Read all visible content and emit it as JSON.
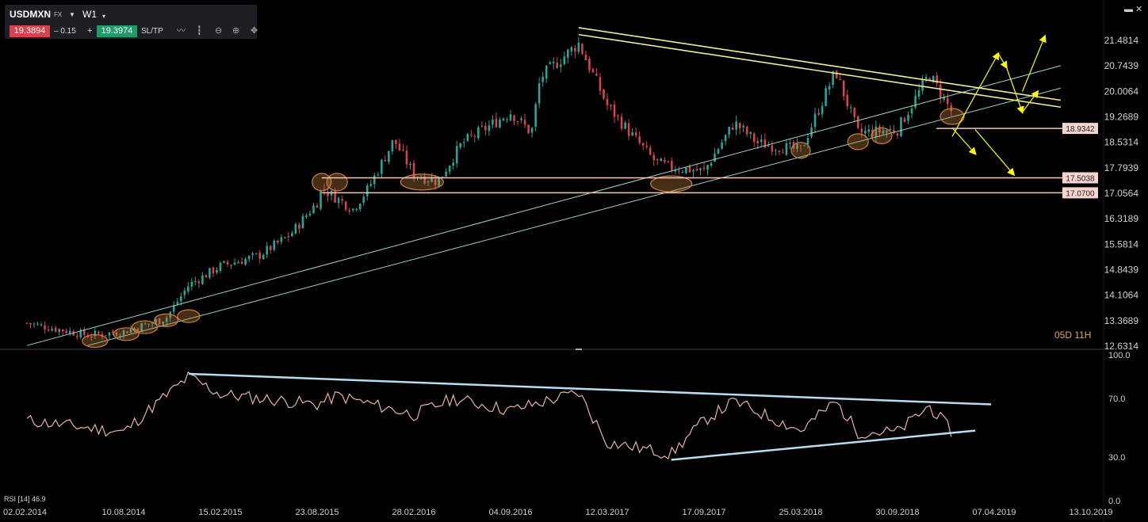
{
  "toolbar": {
    "symbol": "USDMXN",
    "market": "FX",
    "timeframe": "W1",
    "bid": "19.3894",
    "change": "– 0.15",
    "plus": "+",
    "ask": "19.3974",
    "sltp_label": "SL/TP",
    "icons": [
      "line-chart-icon",
      "candle-icon",
      "zoom-out-icon",
      "zoom-in-icon",
      "move-icon"
    ]
  },
  "window_icons": "▬ ✕",
  "countdown": "05D 11H",
  "rsi_label": "RSI [14] 46.9",
  "colors": {
    "bull": "#26a69a",
    "bear": "#d8424f",
    "trend_lines": "#9fd3c7",
    "resistance": "#f0ec9a",
    "level_line": "#f4c6bc",
    "ellipse": "#c9803c",
    "arrow": "#ffff00",
    "rsi_line": "#e9b2a8",
    "rsi_trend": "#b8dcf0"
  },
  "chart_data": [
    {
      "type": "candlestick",
      "symbol": "USDMXN",
      "timeframe": "W1",
      "yaxis_ticks": [
        21.4814,
        20.7439,
        20.0064,
        19.2689,
        18.5314,
        17.7939,
        17.0564,
        16.3189,
        15.5814,
        14.8439,
        14.1064,
        13.3689,
        12.6314
      ],
      "ylim": [
        12.6314,
        22.3
      ],
      "xaxis_ticks": [
        "02.02.2014",
        "10.08.2014",
        "15.02.2015",
        "23.08.2015",
        "28.02.2016",
        "04.09.2016",
        "12.03.2017",
        "17.09.2017",
        "25.03.2018",
        "30.09.2018",
        "07.04.2019",
        "13.10.2019"
      ],
      "price_levels": [
        18.9342,
        17.5038,
        17.07
      ],
      "price_level_labels": [
        "18.9342",
        "17.5038",
        "17.0700"
      ],
      "close_path": [
        {
          "x": "02.02.2014",
          "y": 13.3
        },
        {
          "x": "01.06.2014",
          "y": 12.95
        },
        {
          "x": "10.08.2014",
          "y": 13.05
        },
        {
          "x": "01.11.2014",
          "y": 13.45
        },
        {
          "x": "15.12.2014",
          "y": 14.4
        },
        {
          "x": "15.02.2015",
          "y": 14.95
        },
        {
          "x": "01.05.2015",
          "y": 15.25
        },
        {
          "x": "01.07.2015",
          "y": 15.85
        },
        {
          "x": "23.08.2015",
          "y": 16.8
        },
        {
          "x": "01.09.2015",
          "y": 17.2
        },
        {
          "x": "01.11.2015",
          "y": 16.6
        },
        {
          "x": "01.12.2015",
          "y": 17.2
        },
        {
          "x": "20.01.2016",
          "y": 18.6
        },
        {
          "x": "28.02.2016",
          "y": 17.6
        },
        {
          "x": "15.04.2016",
          "y": 17.4
        },
        {
          "x": "01.06.2016",
          "y": 18.5
        },
        {
          "x": "04.09.2016",
          "y": 19.4
        },
        {
          "x": "15.10.2016",
          "y": 18.8
        },
        {
          "x": "01.11.2016",
          "y": 20.4
        },
        {
          "x": "15.01.2017",
          "y": 21.4
        },
        {
          "x": "12.03.2017",
          "y": 19.6
        },
        {
          "x": "01.05.2017",
          "y": 18.7
        },
        {
          "x": "15.06.2017",
          "y": 17.95
        },
        {
          "x": "15.07.2017",
          "y": 17.8
        },
        {
          "x": "17.09.2017",
          "y": 17.7
        },
        {
          "x": "15.11.2017",
          "y": 19.1
        },
        {
          "x": "01.01.2018",
          "y": 18.5
        },
        {
          "x": "25.03.2018",
          "y": 18.3
        },
        {
          "x": "01.06.2018",
          "y": 20.6
        },
        {
          "x": "15.07.2018",
          "y": 18.8
        },
        {
          "x": "30.09.2018",
          "y": 18.9
        },
        {
          "x": "01.12.2018",
          "y": 20.5
        },
        {
          "x": "15.01.2019",
          "y": 19.39
        }
      ]
    },
    {
      "type": "line",
      "label": "RSI [14] 46.9",
      "yaxis_ticks": [
        100.0,
        70.0,
        30.0,
        0.0
      ],
      "ylim": [
        0,
        100
      ],
      "values": [
        {
          "x": "02.02.2014",
          "y": 55
        },
        {
          "x": "10.08.2014",
          "y": 47
        },
        {
          "x": "01.10.2014",
          "y": 63
        },
        {
          "x": "15.12.2014",
          "y": 85
        },
        {
          "x": "15.02.2015",
          "y": 73
        },
        {
          "x": "23.08.2015",
          "y": 66
        },
        {
          "x": "01.10.2015",
          "y": 72
        },
        {
          "x": "28.02.2016",
          "y": 59
        },
        {
          "x": "15.05.2016",
          "y": 70
        },
        {
          "x": "04.09.2016",
          "y": 62
        },
        {
          "x": "15.01.2017",
          "y": 74
        },
        {
          "x": "12.03.2017",
          "y": 40
        },
        {
          "x": "15.07.2017",
          "y": 32
        },
        {
          "x": "17.09.2017",
          "y": 55
        },
        {
          "x": "15.11.2017",
          "y": 68
        },
        {
          "x": "25.03.2018",
          "y": 48
        },
        {
          "x": "01.06.2018",
          "y": 68
        },
        {
          "x": "15.07.2018",
          "y": 47
        },
        {
          "x": "30.09.2018",
          "y": 47
        },
        {
          "x": "01.12.2018",
          "y": 65
        },
        {
          "x": "15.01.2019",
          "y": 46.9
        }
      ]
    }
  ]
}
